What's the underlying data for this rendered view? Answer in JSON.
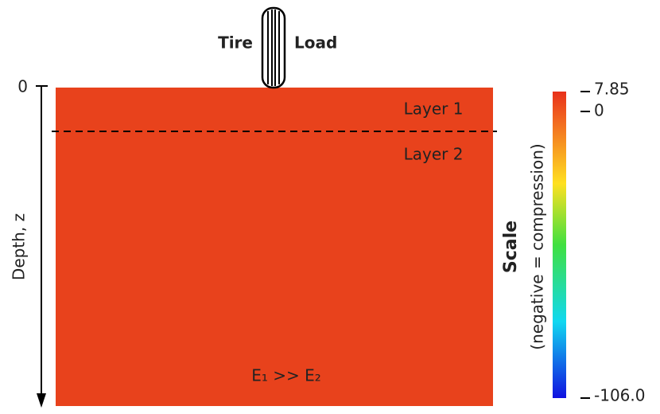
{
  "load": {
    "tire": "Tire",
    "load": "Load"
  },
  "depth_axis": {
    "origin": "0",
    "label": "Depth, z"
  },
  "layers": {
    "layer1": "Layer 1",
    "layer2": "Layer 2",
    "relation": "E₁ >> E₂"
  },
  "scale": {
    "title": "Scale",
    "subtitle": "(negative = compression)",
    "max": "7.85",
    "zero": "0",
    "min": "-106.0"
  }
}
